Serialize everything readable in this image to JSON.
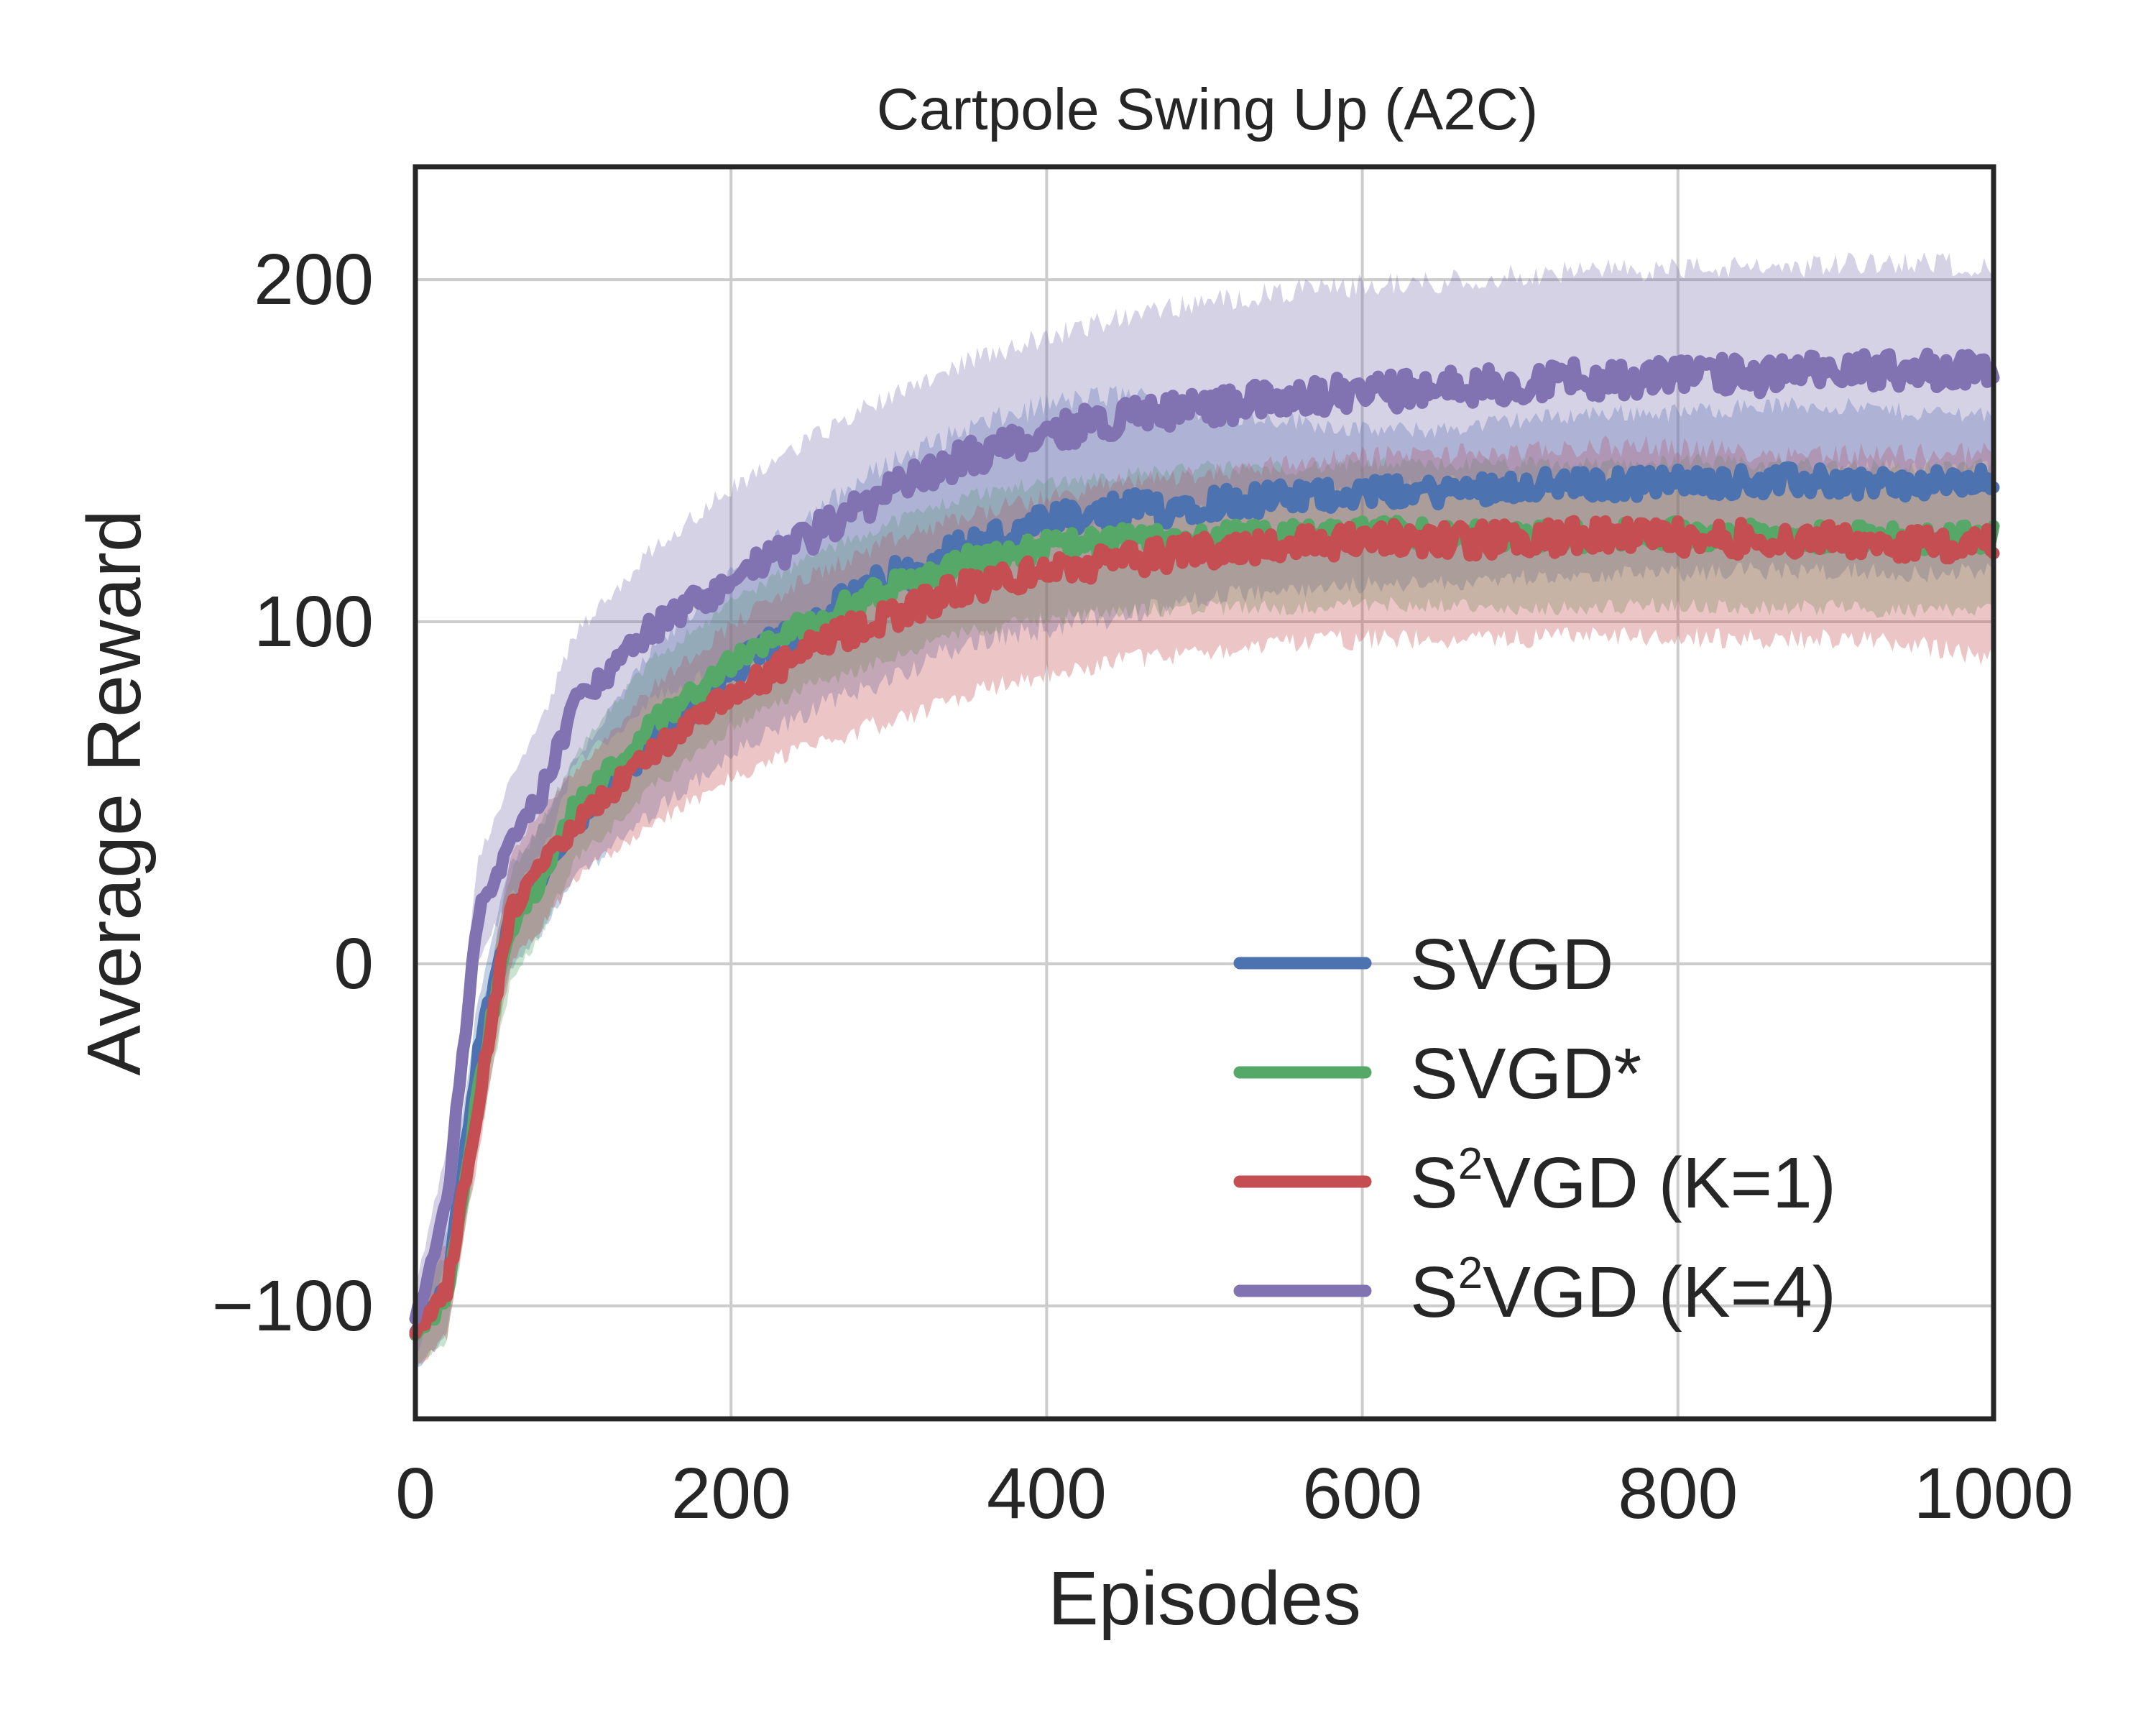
{
  "chart_data": {
    "type": "line",
    "title": "Cartpole Swing Up (A2C)",
    "xlabel": "Episodes",
    "ylabel": "Average Reward",
    "xlim": [
      0,
      1000
    ],
    "ylim": [
      -133,
      233
    ],
    "xticks": [
      0,
      200,
      400,
      600,
      800,
      1000
    ],
    "xtick_labels": [
      "0",
      "200",
      "400",
      "600",
      "800",
      "1000"
    ],
    "yticks": [
      -100,
      0,
      100,
      200
    ],
    "ytick_labels": [
      "−100",
      "0",
      "100",
      "200"
    ],
    "grid": true,
    "legend_position": "lower-right",
    "series": [
      {
        "name": "SVGD",
        "legend_base": "SVGD",
        "legend_sup": "",
        "legend_suffix": "",
        "color": "#4c72b0",
        "x": [
          0,
          20,
          40,
          60,
          80,
          100,
          150,
          200,
          250,
          300,
          350,
          400,
          450,
          500,
          550,
          600,
          650,
          700,
          750,
          800,
          850,
          900,
          950,
          1000
        ],
        "mean": [
          -108,
          -95,
          -25,
          15,
          25,
          40,
          65,
          85,
          100,
          112,
          122,
          128,
          132,
          135,
          136,
          138,
          138,
          140,
          140,
          141,
          141,
          141,
          140,
          141
        ],
        "upper": [
          -100,
          -80,
          -10,
          28,
          40,
          58,
          90,
          112,
          130,
          145,
          155,
          162,
          165,
          160,
          158,
          155,
          155,
          158,
          160,
          160,
          162,
          162,
          160,
          160
        ],
        "lower": [
          -118,
          -108,
          -40,
          0,
          10,
          25,
          45,
          62,
          75,
          85,
          95,
          100,
          103,
          108,
          110,
          112,
          112,
          114,
          115,
          115,
          116,
          116,
          115,
          116
        ]
      },
      {
        "name": "SVGD*",
        "legend_base": "SVGD*",
        "legend_sup": "",
        "legend_suffix": "",
        "color": "#55a868",
        "x": [
          0,
          20,
          40,
          60,
          80,
          100,
          150,
          200,
          250,
          300,
          350,
          400,
          450,
          500,
          550,
          600,
          650,
          700,
          750,
          800,
          850,
          900,
          950,
          1000
        ],
        "mean": [
          -108,
          -98,
          -35,
          10,
          25,
          45,
          70,
          88,
          100,
          110,
          118,
          122,
          124,
          125,
          125,
          126,
          126,
          125,
          125,
          126,
          125,
          125,
          124,
          125
        ],
        "upper": [
          -100,
          -85,
          -20,
          25,
          40,
          60,
          88,
          105,
          118,
          128,
          136,
          140,
          142,
          144,
          144,
          145,
          145,
          145,
          145,
          146,
          145,
          145,
          144,
          145
        ],
        "lower": [
          -118,
          -110,
          -52,
          -5,
          10,
          30,
          52,
          70,
          82,
          90,
          98,
          102,
          104,
          105,
          105,
          106,
          106,
          105,
          105,
          106,
          105,
          105,
          104,
          105
        ]
      },
      {
        "name": "S²VGD (K=1)",
        "legend_base": "S",
        "legend_sup": "2",
        "legend_suffix": "VGD (K=1)",
        "color": "#c44e52",
        "x": [
          0,
          20,
          40,
          60,
          80,
          100,
          150,
          200,
          250,
          300,
          350,
          400,
          450,
          500,
          550,
          600,
          650,
          700,
          750,
          800,
          850,
          900,
          950,
          1000
        ],
        "mean": [
          -108,
          -95,
          -40,
          15,
          28,
          40,
          62,
          78,
          92,
          102,
          110,
          115,
          118,
          121,
          123,
          124,
          124,
          124,
          125,
          125,
          124,
          124,
          123,
          122
        ],
        "upper": [
          -100,
          -82,
          -25,
          30,
          45,
          55,
          80,
          98,
          112,
          122,
          130,
          135,
          140,
          142,
          145,
          147,
          148,
          148,
          150,
          150,
          148,
          148,
          148,
          148
        ],
        "lower": [
          -118,
          -108,
          -55,
          0,
          12,
          25,
          42,
          55,
          65,
          72,
          80,
          86,
          90,
          92,
          95,
          96,
          96,
          96,
          97,
          97,
          96,
          96,
          95,
          90
        ]
      },
      {
        "name": "S²VGD (K=4)",
        "legend_base": "S",
        "legend_sup": "2",
        "legend_suffix": "VGD (K=4)",
        "color": "#8172b2",
        "x": [
          0,
          20,
          40,
          60,
          80,
          100,
          150,
          200,
          250,
          300,
          350,
          400,
          450,
          500,
          550,
          600,
          650,
          700,
          750,
          800,
          850,
          900,
          950,
          1000
        ],
        "mean": [
          -105,
          -70,
          15,
          35,
          50,
          75,
          98,
          112,
          125,
          138,
          148,
          155,
          160,
          163,
          165,
          167,
          168,
          170,
          171,
          172,
          172,
          173,
          174,
          173
        ],
        "upper": [
          -95,
          -55,
          30,
          52,
          70,
          95,
          120,
          138,
          152,
          165,
          175,
          182,
          188,
          192,
          195,
          197,
          198,
          200,
          201,
          202,
          202,
          203,
          204,
          202
        ],
        "lower": [
          -115,
          -85,
          2,
          20,
          32,
          58,
          78,
          90,
          100,
          112,
          122,
          128,
          133,
          136,
          138,
          140,
          141,
          142,
          143,
          144,
          144,
          145,
          146,
          145
        ]
      }
    ]
  }
}
